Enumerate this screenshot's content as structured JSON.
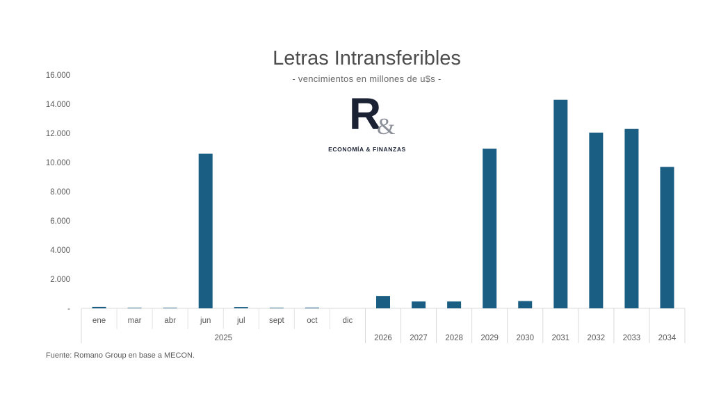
{
  "chart_data": {
    "type": "bar",
    "title": "Letras Intransferibles",
    "subtitle": "- vencimientos en millones de u$s -",
    "ylim": [
      0,
      16000
    ],
    "yticks": [
      {
        "value": 0,
        "label": "-"
      },
      {
        "value": 2000,
        "label": "2.000"
      },
      {
        "value": 4000,
        "label": "4.000"
      },
      {
        "value": 6000,
        "label": "6.000"
      },
      {
        "value": 8000,
        "label": "8.000"
      },
      {
        "value": 10000,
        "label": "10.000"
      },
      {
        "value": 12000,
        "label": "12.000"
      },
      {
        "value": 14000,
        "label": "14.000"
      },
      {
        "value": 16000,
        "label": "16.000"
      }
    ],
    "categories": [
      "ene",
      "mar",
      "abr",
      "jun",
      "jul",
      "sept",
      "oct",
      "dic",
      "2026",
      "2027",
      "2028",
      "2029",
      "2030",
      "2031",
      "2032",
      "2033",
      "2034"
    ],
    "group_labels": [
      {
        "label": "2025",
        "start": 0,
        "end": 7
      }
    ],
    "values": [
      100,
      40,
      40,
      10600,
      90,
      40,
      50,
      0,
      850,
      470,
      470,
      10950,
      500,
      14300,
      12050,
      12300,
      9700
    ],
    "bar_color": "#1a5e84",
    "grid": false
  },
  "source": "Fuente: Romano Group en base a MECON.",
  "logo": {
    "letter": "R",
    "symbol": "&",
    "text": "ECONOMÍA & FINANZAS"
  }
}
